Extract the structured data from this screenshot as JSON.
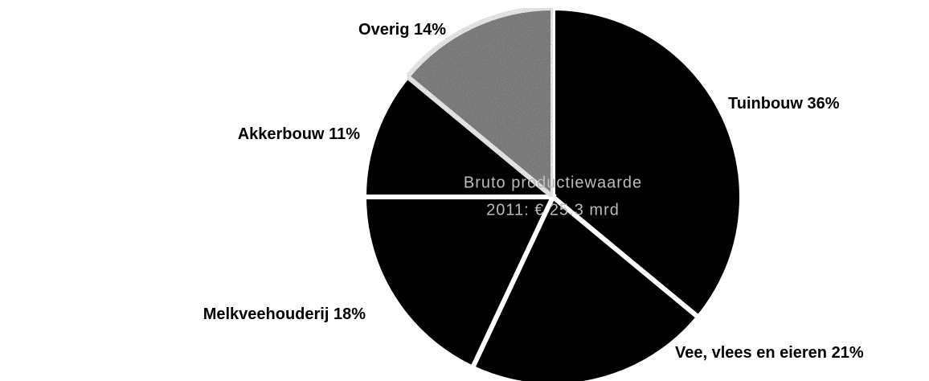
{
  "chart_data": {
    "type": "pie",
    "annotations": [
      "Bruto productiewaarde",
      "2011: € 25.3 mrd"
    ],
    "categories": [
      "Tuinbouw",
      "Vee, vlees en eieren",
      "Melkveehouderij",
      "Akkerbouw",
      "Overig"
    ],
    "values": [
      36,
      21,
      18,
      11,
      14
    ],
    "value_labels": [
      "36%",
      "21%",
      "18%",
      "11%",
      "14%"
    ],
    "colors": [
      "#000000",
      "#000000",
      "#000000",
      "#000000",
      "#8c8c8c"
    ]
  }
}
